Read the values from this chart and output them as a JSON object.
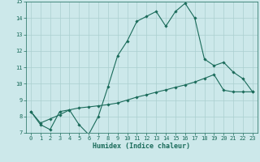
{
  "title": "",
  "xlabel": "Humidex (Indice chaleur)",
  "xlim": [
    -0.5,
    23.5
  ],
  "ylim": [
    7,
    15
  ],
  "yticks": [
    7,
    8,
    9,
    10,
    11,
    12,
    13,
    14,
    15
  ],
  "xticks": [
    0,
    1,
    2,
    3,
    4,
    5,
    6,
    7,
    8,
    9,
    10,
    11,
    12,
    13,
    14,
    15,
    16,
    17,
    18,
    19,
    20,
    21,
    22,
    23
  ],
  "line1_x": [
    0,
    1,
    2,
    3,
    4,
    5,
    6,
    7,
    8,
    9,
    10,
    11,
    12,
    13,
    14,
    15,
    16,
    17,
    18,
    19,
    20,
    21,
    22,
    23
  ],
  "line1_y": [
    8.3,
    7.5,
    7.2,
    8.3,
    8.4,
    7.5,
    6.9,
    8.0,
    9.8,
    11.7,
    12.6,
    13.8,
    14.1,
    14.4,
    13.5,
    14.4,
    14.9,
    14.0,
    11.5,
    11.1,
    11.3,
    10.7,
    10.3,
    9.5
  ],
  "line2_x": [
    0,
    1,
    2,
    3,
    4,
    5,
    6,
    7,
    8,
    9,
    10,
    11,
    12,
    13,
    14,
    15,
    16,
    17,
    18,
    19,
    20,
    21,
    22,
    23
  ],
  "line2_y": [
    8.3,
    7.6,
    7.85,
    8.1,
    8.4,
    8.52,
    8.58,
    8.65,
    8.72,
    8.82,
    9.0,
    9.18,
    9.32,
    9.48,
    9.62,
    9.78,
    9.92,
    10.1,
    10.32,
    10.55,
    9.6,
    9.5,
    9.5,
    9.5
  ],
  "line_color": "#1a6b5a",
  "marker": "D",
  "marker_size": 1.8,
  "bg_color": "#cce8ea",
  "grid_color": "#aacfcf",
  "tick_fontsize": 5.0,
  "xlabel_fontsize": 6.0,
  "line_width": 0.8
}
